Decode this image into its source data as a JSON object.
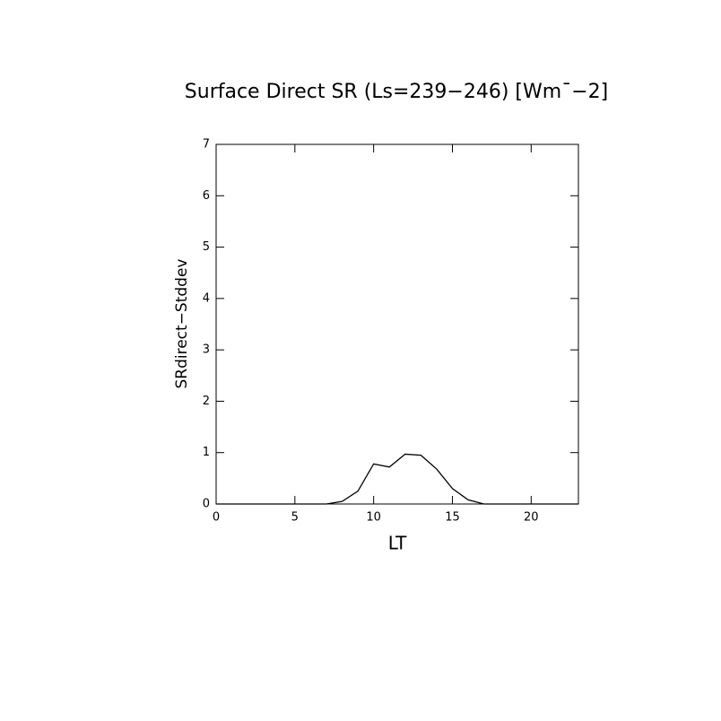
{
  "chart_data": {
    "type": "line",
    "title": "Surface Direct SR (Ls=239−246) [Wm¯−2]",
    "x_label": "LT",
    "y_label": "SRdirect−Stddev",
    "x": [
      0,
      1,
      2,
      3,
      4,
      5,
      6,
      7,
      8,
      9,
      10,
      11,
      12,
      13,
      14,
      15,
      16,
      17,
      18,
      19,
      20,
      21,
      22,
      23
    ],
    "series": [
      {
        "color": "#000000",
        "values": [
          0,
          0,
          0,
          0,
          0,
          0,
          0,
          0,
          0.05,
          0.25,
          0.78,
          0.72,
          0.97,
          0.95,
          0.68,
          0.3,
          0.08,
          0,
          0,
          0,
          0,
          0,
          0,
          0
        ]
      }
    ],
    "xlim": [
      0,
      23
    ],
    "ylim": [
      0,
      7
    ],
    "xticks": [
      0,
      5,
      10,
      15,
      20
    ],
    "yticks": [
      0,
      1,
      2,
      3,
      4,
      5,
      6,
      7
    ]
  }
}
